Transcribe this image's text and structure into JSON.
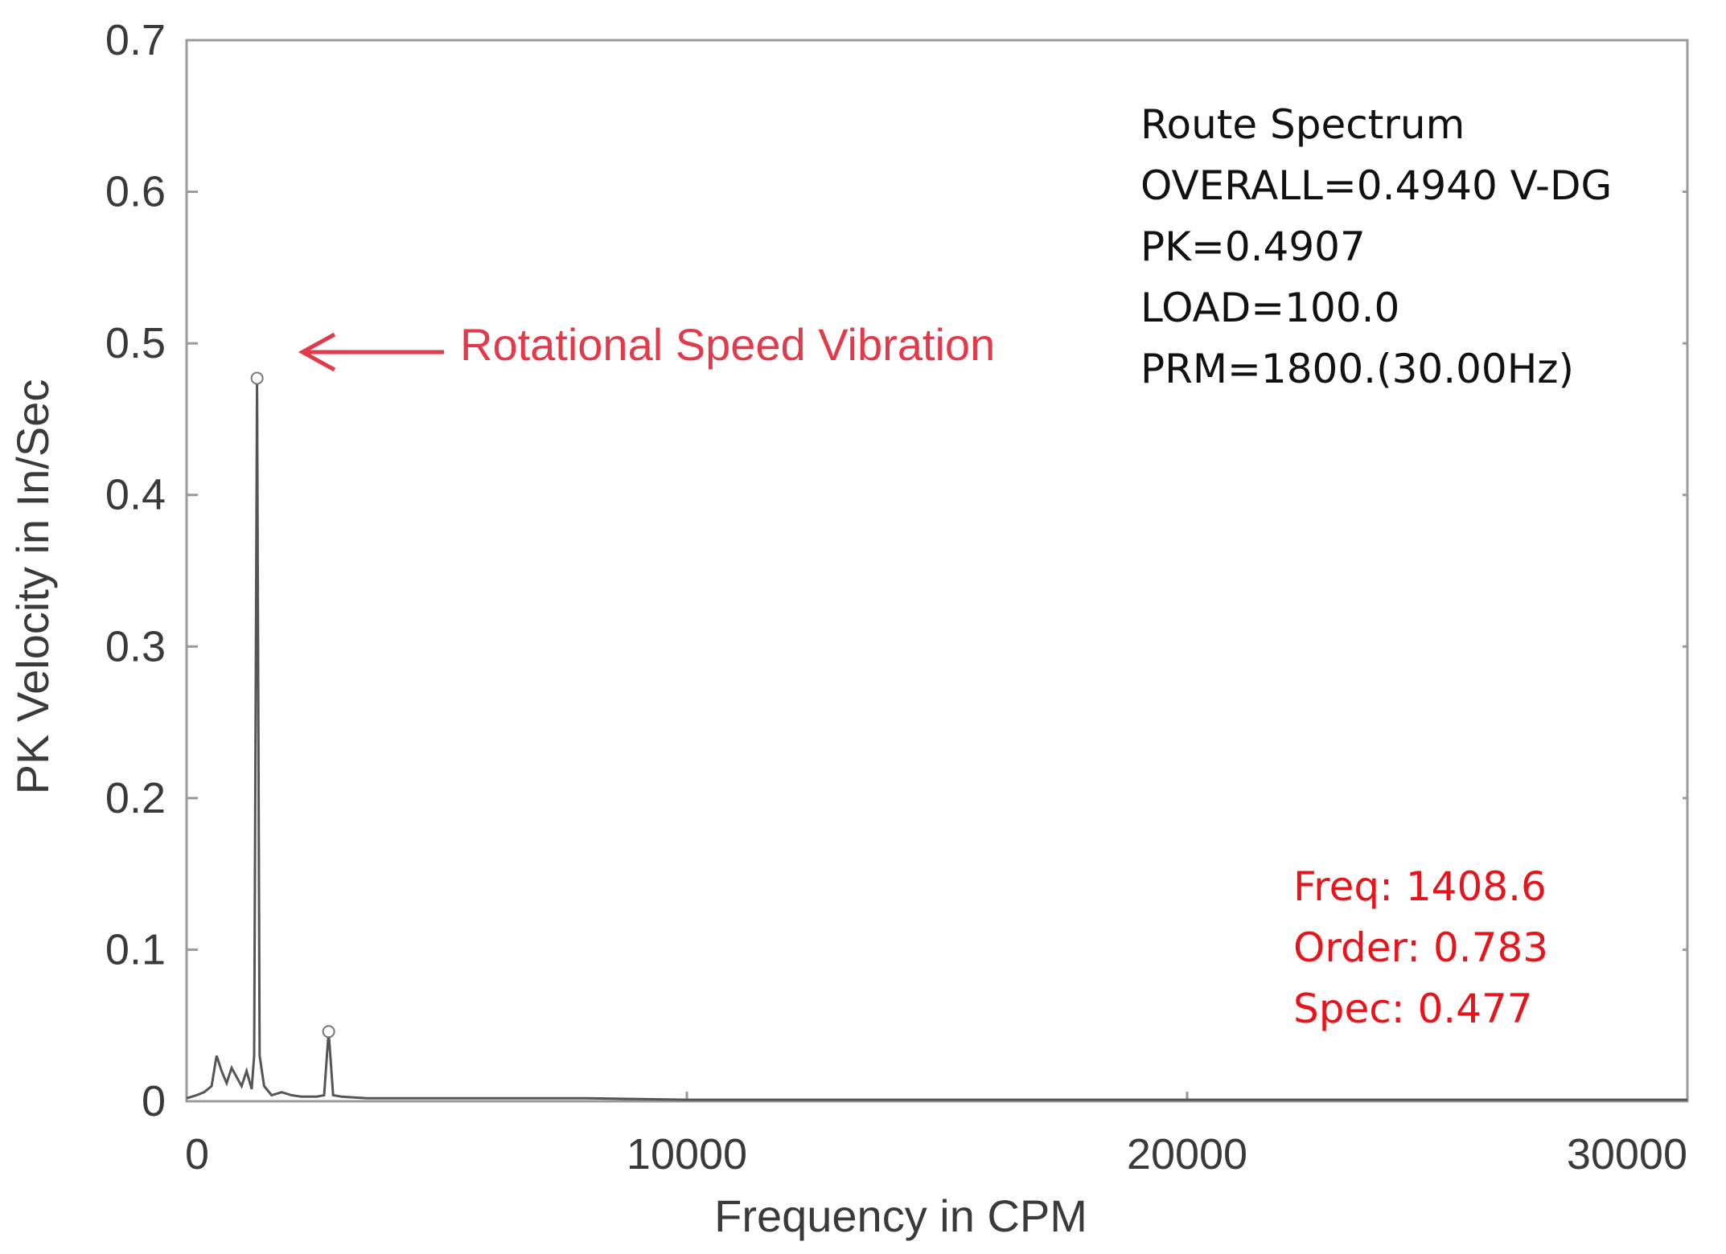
{
  "chart_data": {
    "type": "line",
    "xlabel": "Frequency in CPM",
    "ylabel": "PK Velocity in In/Sec",
    "xlim": [
      0,
      30000
    ],
    "ylim": [
      0,
      0.7
    ],
    "x_ticks": [
      "0",
      "10000",
      "20000",
      "30000"
    ],
    "y_ticks": [
      "0",
      "0.1",
      "0.2",
      "0.3",
      "0.4",
      "0.5",
      "0.6",
      "0.7"
    ],
    "grid": false,
    "series": [
      {
        "x": [
          0,
          200,
          350,
          500,
          600,
          700,
          800,
          900,
          1000,
          1100,
          1200,
          1300,
          1350,
          1408.6,
          1460,
          1550,
          1700,
          1900,
          2100,
          2300,
          2600,
          2750,
          2840,
          2930,
          3100,
          3600,
          4200,
          5000,
          6000,
          8000,
          10000,
          12000,
          14000,
          16000,
          18000,
          20000,
          22000,
          24000,
          26000,
          28000,
          30000
        ],
        "y": [
          0.002,
          0.004,
          0.006,
          0.01,
          0.03,
          0.02,
          0.012,
          0.022,
          0.016,
          0.01,
          0.02,
          0.008,
          0.03,
          0.477,
          0.03,
          0.01,
          0.004,
          0.006,
          0.004,
          0.003,
          0.003,
          0.004,
          0.046,
          0.004,
          0.003,
          0.002,
          0.002,
          0.002,
          0.002,
          0.002,
          0.001,
          0.001,
          0.001,
          0.001,
          0.001,
          0.001,
          0.001,
          0.001,
          0.001,
          0.001,
          0.001
        ]
      }
    ],
    "markers": [
      {
        "x": 1408.6,
        "y": 0.477
      },
      {
        "x": 2840,
        "y": 0.046
      }
    ],
    "annotation": "Rotational Speed Vibration",
    "info_lines": [
      "Route Spectrum",
      "OVERALL=0.4940 V-DG",
      "PK=0.4907",
      "LOAD=100.0",
      "PRM=1800.(30.00Hz)"
    ],
    "cursor_lines": [
      "Freq: 1408.6",
      "Order: 0.783",
      "Spec: 0.477"
    ],
    "colors": {
      "axis": "#8a8a8a",
      "trace": "#555555",
      "annotation": "#e23a4a",
      "cursor_text": "#e8141b",
      "info_text": "#111111"
    }
  }
}
